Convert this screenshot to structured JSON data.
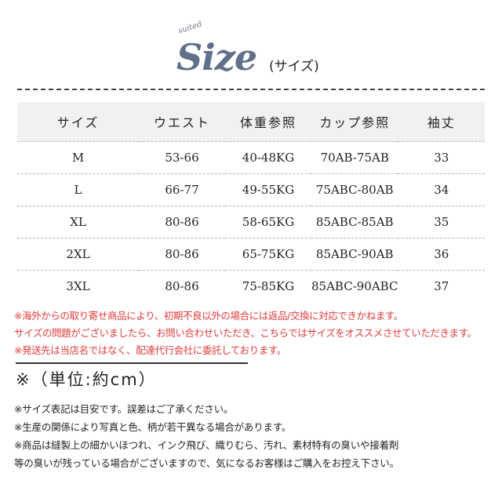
{
  "title": {
    "small": "suited",
    "logo": "Size",
    "label": "(サイズ)"
  },
  "table": {
    "headers": [
      "サイズ",
      "ウエスト",
      "体重参照",
      "カップ参照",
      "袖丈"
    ],
    "rows": [
      [
        "M",
        "53-66",
        "40-48KG",
        "70AB-75AB",
        "33"
      ],
      [
        "L",
        "66-77",
        "49-55KG",
        "75ABC-80AB",
        "34"
      ],
      [
        "XL",
        "80-86",
        "58-65KG",
        "85ABC-85AB",
        "35"
      ],
      [
        "2XL",
        "80-86",
        "65-75KG",
        "85ABC-90AB",
        "36"
      ],
      [
        "3XL",
        "80-86",
        "75-85KG",
        "85ABC-90ABC",
        "37"
      ]
    ]
  },
  "red_notes": [
    "※海外からの取り寄せ商品により、初期不良以外の場合には返品/交換に対応できかねます。",
    "サイズの問題がございましたら、お問い合わせいただき、こちらではサイズをオススメさせていただきます。",
    "※発送先は当店名ではなく、配達代行会社に委託しております。"
  ],
  "unit": "※（単位:約cm）",
  "notes": [
    "※サイズ表記は目安です。誤差はご了承ください。",
    "※生産の関係により写真と色、柄が若干異なる場合があります。",
    "※商品は縫製上の細かいほつれ、インク飛び、織りむら、汚れ、素材特有の臭いや接着剤",
    "等の臭いが残っている場合がございますので、気になるお客様はご購入をお控え下さい。"
  ],
  "colors": {
    "logo": "#5f7088",
    "warning_text": "#e23a3a",
    "header_bg": "#f1f1f1"
  }
}
